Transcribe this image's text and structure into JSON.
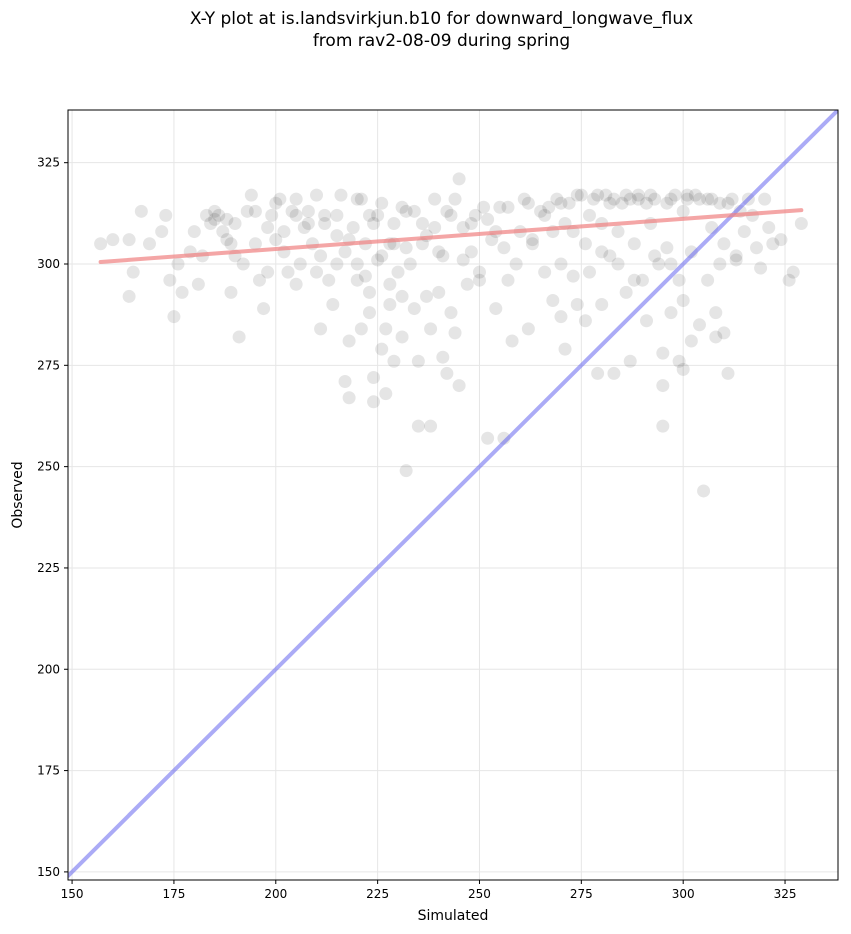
{
  "chart_data": {
    "type": "scatter",
    "title_line1": "X-Y plot at is.landsvirkjun.b10 for downward_longwave_flux",
    "title_line2": "from rav2-08-09 during spring",
    "xlabel": "Simulated",
    "ylabel": "Observed",
    "xlim": [
      149,
      338
    ],
    "ylim": [
      148,
      338
    ],
    "xticks": [
      150,
      175,
      200,
      225,
      250,
      275,
      300,
      325
    ],
    "yticks": [
      150,
      175,
      200,
      225,
      250,
      275,
      300,
      325
    ],
    "grid": true,
    "point_color": "#000000",
    "fit_line": {
      "color": "#f08080",
      "x": [
        157,
        329
      ],
      "y": [
        300.5,
        313.3
      ]
    },
    "identity_line": {
      "color": "#6666ee",
      "x": [
        149,
        338
      ],
      "y": [
        149,
        338
      ]
    },
    "series": [
      {
        "values": [
          [
            157,
            305
          ],
          [
            160,
            306
          ],
          [
            164,
            306
          ],
          [
            165,
            298
          ],
          [
            164,
            292
          ],
          [
            167,
            313
          ],
          [
            169,
            305
          ],
          [
            172,
            308
          ],
          [
            173,
            312
          ],
          [
            174,
            296
          ],
          [
            175,
            287
          ],
          [
            176,
            300
          ],
          [
            177,
            293
          ],
          [
            179,
            303
          ],
          [
            180,
            308
          ],
          [
            181,
            295
          ],
          [
            182,
            302
          ],
          [
            183,
            312
          ],
          [
            184,
            310
          ],
          [
            185,
            311
          ],
          [
            186,
            312
          ],
          [
            187,
            308
          ],
          [
            188,
            306
          ],
          [
            189,
            305
          ],
          [
            189,
            293
          ],
          [
            190,
            310
          ],
          [
            191,
            282
          ],
          [
            192,
            300
          ],
          [
            193,
            313
          ],
          [
            194,
            317
          ],
          [
            195,
            305
          ],
          [
            196,
            296
          ],
          [
            197,
            289
          ],
          [
            198,
            309
          ],
          [
            199,
            312
          ],
          [
            200,
            306
          ],
          [
            201,
            316
          ],
          [
            202,
            303
          ],
          [
            203,
            298
          ],
          [
            204,
            313
          ],
          [
            205,
            316
          ],
          [
            206,
            300
          ],
          [
            207,
            309
          ],
          [
            208,
            313
          ],
          [
            209,
            305
          ],
          [
            210,
            298
          ],
          [
            211,
            302
          ],
          [
            211,
            284
          ],
          [
            212,
            310
          ],
          [
            213,
            296
          ],
          [
            214,
            290
          ],
          [
            215,
            312
          ],
          [
            216,
            317
          ],
          [
            217,
            303
          ],
          [
            217,
            271
          ],
          [
            218,
            281
          ],
          [
            218,
            267
          ],
          [
            219,
            309
          ],
          [
            220,
            300
          ],
          [
            221,
            284
          ],
          [
            221,
            316
          ],
          [
            222,
            305
          ],
          [
            222,
            297
          ],
          [
            223,
            293
          ],
          [
            223,
            288
          ],
          [
            224,
            272
          ],
          [
            224,
            266
          ],
          [
            225,
            312
          ],
          [
            225,
            301
          ],
          [
            226,
            302
          ],
          [
            226,
            279
          ],
          [
            227,
            284
          ],
          [
            227,
            268
          ],
          [
            228,
            295
          ],
          [
            228,
            290
          ],
          [
            229,
            305
          ],
          [
            229,
            276
          ],
          [
            230,
            298
          ],
          [
            231,
            292
          ],
          [
            231,
            282
          ],
          [
            232,
            313
          ],
          [
            232,
            249
          ],
          [
            233,
            300
          ],
          [
            234,
            289
          ],
          [
            235,
            276
          ],
          [
            235,
            260
          ],
          [
            236,
            305
          ],
          [
            237,
            292
          ],
          [
            238,
            284
          ],
          [
            238,
            260
          ],
          [
            239,
            309
          ],
          [
            240,
            303
          ],
          [
            240,
            293
          ],
          [
            241,
            277
          ],
          [
            242,
            313
          ],
          [
            242,
            273
          ],
          [
            243,
            288
          ],
          [
            244,
            316
          ],
          [
            244,
            283
          ],
          [
            245,
            321
          ],
          [
            245,
            270
          ],
          [
            246,
            309
          ],
          [
            247,
            295
          ],
          [
            248,
            303
          ],
          [
            249,
            312
          ],
          [
            250,
            298
          ],
          [
            251,
            314
          ],
          [
            252,
            257
          ],
          [
            253,
            306
          ],
          [
            254,
            289
          ],
          [
            255,
            314
          ],
          [
            256,
            304
          ],
          [
            256,
            257
          ],
          [
            257,
            296
          ],
          [
            258,
            281
          ],
          [
            260,
            308
          ],
          [
            262,
            315
          ],
          [
            262,
            284
          ],
          [
            263,
            305
          ],
          [
            265,
            313
          ],
          [
            266,
            298
          ],
          [
            267,
            314
          ],
          [
            268,
            291
          ],
          [
            269,
            316
          ],
          [
            270,
            300
          ],
          [
            270,
            287
          ],
          [
            271,
            310
          ],
          [
            271,
            279
          ],
          [
            272,
            315
          ],
          [
            273,
            308
          ],
          [
            273,
            297
          ],
          [
            274,
            290
          ],
          [
            275,
            317
          ],
          [
            276,
            305
          ],
          [
            276,
            286
          ],
          [
            277,
            312
          ],
          [
            277,
            298
          ],
          [
            278,
            316
          ],
          [
            279,
            273
          ],
          [
            280,
            310
          ],
          [
            280,
            290
          ],
          [
            281,
            317
          ],
          [
            282,
            302
          ],
          [
            283,
            316
          ],
          [
            283,
            273
          ],
          [
            284,
            308
          ],
          [
            285,
            315
          ],
          [
            286,
            293
          ],
          [
            287,
            316
          ],
          [
            287,
            276
          ],
          [
            288,
            305
          ],
          [
            289,
            317
          ],
          [
            290,
            296
          ],
          [
            291,
            315
          ],
          [
            291,
            286
          ],
          [
            292,
            310
          ],
          [
            293,
            316
          ],
          [
            294,
            300
          ],
          [
            295,
            278
          ],
          [
            295,
            270
          ],
          [
            295,
            260
          ],
          [
            296,
            315
          ],
          [
            296,
            304
          ],
          [
            297,
            288
          ],
          [
            298,
            317
          ],
          [
            299,
            296
          ],
          [
            299,
            276
          ],
          [
            300,
            313
          ],
          [
            300,
            291
          ],
          [
            300,
            274
          ],
          [
            301,
            316
          ],
          [
            302,
            303
          ],
          [
            302,
            281
          ],
          [
            303,
            317
          ],
          [
            304,
            285
          ],
          [
            305,
            244
          ],
          [
            306,
            316
          ],
          [
            306,
            296
          ],
          [
            307,
            309
          ],
          [
            308,
            282
          ],
          [
            308,
            288
          ],
          [
            309,
            315
          ],
          [
            310,
            305
          ],
          [
            310,
            283
          ],
          [
            311,
            273
          ],
          [
            312,
            316
          ],
          [
            313,
            302
          ],
          [
            314,
            313
          ],
          [
            315,
            308
          ],
          [
            316,
            316
          ],
          [
            317,
            312
          ],
          [
            318,
            304
          ],
          [
            319,
            299
          ],
          [
            320,
            316
          ],
          [
            321,
            309
          ],
          [
            322,
            305
          ],
          [
            324,
            306
          ],
          [
            326,
            296
          ],
          [
            327,
            298
          ],
          [
            329,
            310
          ],
          [
            185,
            313
          ],
          [
            188,
            311
          ],
          [
            195,
            313
          ],
          [
            200,
            315
          ],
          [
            205,
            312
          ],
          [
            210,
            317
          ],
          [
            215,
            307
          ],
          [
            220,
            316
          ],
          [
            223,
            312
          ],
          [
            226,
            315
          ],
          [
            229,
            310
          ],
          [
            231,
            314
          ],
          [
            234,
            313
          ],
          [
            236,
            310
          ],
          [
            239,
            316
          ],
          [
            243,
            312
          ],
          [
            248,
            310
          ],
          [
            252,
            311
          ],
          [
            257,
            314
          ],
          [
            261,
            316
          ],
          [
            266,
            312
          ],
          [
            270,
            315
          ],
          [
            274,
            317
          ],
          [
            279,
            317
          ],
          [
            282,
            315
          ],
          [
            286,
            317
          ],
          [
            289,
            316
          ],
          [
            292,
            317
          ],
          [
            297,
            316
          ],
          [
            301,
            317
          ],
          [
            304,
            316
          ],
          [
            307,
            316
          ],
          [
            311,
            315
          ],
          [
            263,
            306
          ],
          [
            268,
            308
          ],
          [
            280,
            303
          ],
          [
            284,
            300
          ],
          [
            288,
            296
          ],
          [
            293,
            302
          ],
          [
            297,
            300
          ],
          [
            309,
            300
          ],
          [
            313,
            301
          ],
          [
            215,
            300
          ],
          [
            220,
            296
          ],
          [
            205,
            295
          ],
          [
            208,
            310
          ],
          [
            212,
            312
          ],
          [
            218,
            306
          ],
          [
            224,
            310
          ],
          [
            228,
            305
          ],
          [
            232,
            304
          ],
          [
            237,
            307
          ],
          [
            241,
            302
          ],
          [
            246,
            301
          ],
          [
            250,
            296
          ],
          [
            254,
            308
          ],
          [
            259,
            300
          ],
          [
            198,
            298
          ],
          [
            202,
            308
          ],
          [
            190,
            302
          ]
        ]
      }
    ]
  }
}
